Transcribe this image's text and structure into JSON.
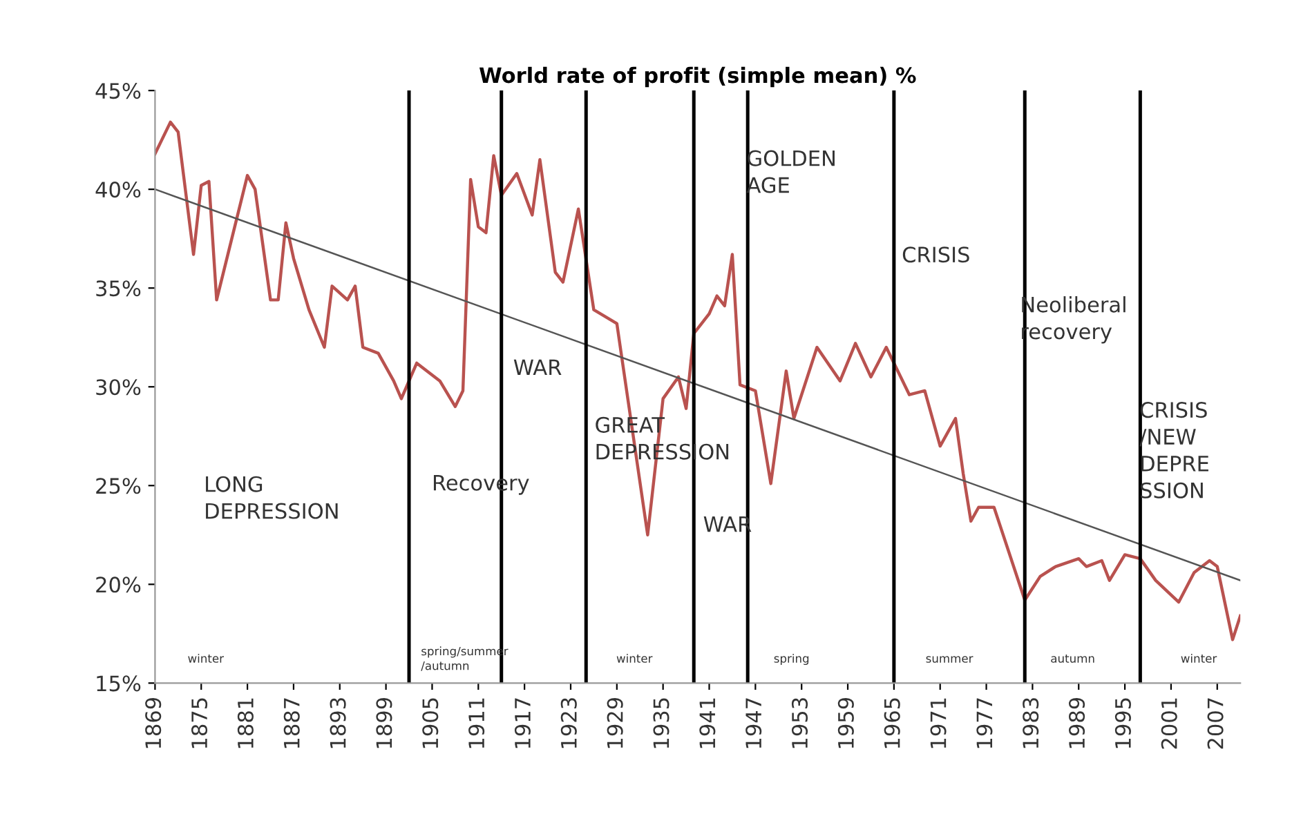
{
  "chart_data": {
    "type": "line",
    "title": "World rate of profit (simple mean) %",
    "series": [
      {
        "color": "#b9524f",
        "x": [
          1869,
          1871,
          1872,
          1874,
          1875,
          1876,
          1877,
          1881,
          1882,
          1884,
          1885,
          1886,
          1887,
          1889,
          1891,
          1892,
          1894,
          1895,
          1896,
          1898,
          1900,
          1901,
          1903,
          1906,
          1908,
          1909,
          1910,
          1911,
          1912,
          1913,
          1914,
          1916,
          1918,
          1919,
          1921,
          1922,
          1924,
          1926,
          1929,
          1933,
          1935,
          1937,
          1938,
          1939,
          1941,
          1942,
          1943,
          1944,
          1945,
          1947,
          1949,
          1951,
          1952,
          1955,
          1958,
          1960,
          1962,
          1964,
          1967,
          1969,
          1971,
          1973,
          1974,
          1975,
          1976,
          1978,
          1982,
          1984,
          1986,
          1989,
          1990,
          1992,
          1993,
          1995,
          1997,
          1999,
          2002,
          2004,
          2006,
          2007,
          2009,
          2010
        ],
        "values": [
          41.8,
          43.4,
          42.9,
          36.7,
          40.2,
          40.4,
          34.4,
          40.7,
          40.0,
          34.4,
          34.4,
          38.3,
          36.5,
          33.9,
          32.0,
          35.1,
          34.4,
          35.1,
          32.0,
          31.7,
          30.3,
          29.4,
          31.2,
          30.3,
          29.0,
          29.8,
          40.5,
          38.1,
          37.8,
          41.7,
          39.7,
          40.8,
          38.7,
          41.5,
          35.8,
          35.3,
          39.0,
          33.9,
          33.2,
          22.5,
          29.4,
          30.5,
          28.9,
          32.7,
          33.7,
          34.6,
          34.1,
          36.7,
          30.1,
          29.8,
          25.1,
          30.8,
          28.4,
          32.0,
          30.3,
          32.2,
          30.5,
          32.0,
          29.6,
          29.8,
          27.0,
          28.4,
          25.6,
          23.2,
          23.9,
          23.9,
          19.2,
          20.4,
          20.9,
          21.3,
          20.9,
          21.2,
          20.2,
          21.5,
          21.3,
          20.2,
          19.1,
          20.6,
          21.2,
          20.9,
          17.2,
          18.4
        ]
      },
      {
        "color": "#555555",
        "x": [
          1869,
          2010
        ],
        "values": [
          40.0,
          20.2
        ]
      }
    ],
    "xlim": [
      1869,
      2010
    ],
    "ylim": [
      15,
      45
    ],
    "xticks": [
      1869,
      1875,
      1881,
      1887,
      1893,
      1899,
      1905,
      1911,
      1917,
      1923,
      1929,
      1935,
      1941,
      1947,
      1953,
      1959,
      1965,
      1971,
      1977,
      1983,
      1989,
      1995,
      2001,
      2007
    ],
    "yticks": [
      {
        "value": 15,
        "label": "15%"
      },
      {
        "value": 20,
        "label": "20%"
      },
      {
        "value": 25,
        "label": "25%"
      },
      {
        "value": 30,
        "label": "30%"
      },
      {
        "value": 35,
        "label": "35%"
      },
      {
        "value": 40,
        "label": "40%"
      },
      {
        "value": 45,
        "label": "45%"
      }
    ],
    "ref_lines": [
      {
        "axis": "x",
        "value": 1902,
        "color": "#000000"
      },
      {
        "axis": "x",
        "value": 1914,
        "color": "#000000"
      },
      {
        "axis": "x",
        "value": 1925,
        "color": "#000000"
      },
      {
        "axis": "x",
        "value": 1939,
        "color": "#000000"
      },
      {
        "axis": "x",
        "value": 1946,
        "color": "#000000"
      },
      {
        "axis": "x",
        "value": 1965,
        "color": "#000000"
      },
      {
        "axis": "x",
        "value": 1982,
        "color": "#000000"
      },
      {
        "axis": "x",
        "value": 1997,
        "color": "#000000"
      }
    ],
    "annotations": [
      "LONG\nDEPRESSION",
      "Recovery",
      "WAR",
      "GREAT\nDEPRESSION",
      "WAR",
      "GOLDEN\nAGE",
      "CRISIS",
      "Neoliberal\nrecovery",
      "CRISIS\n/NEW\nDEPRE\nSSION",
      "winter",
      "spring/summer\n/autumn",
      "winter",
      "spring",
      "summer",
      "autumn",
      "winter"
    ],
    "grid": false,
    "legend": false,
    "marker": "none",
    "line_style": "solid"
  }
}
